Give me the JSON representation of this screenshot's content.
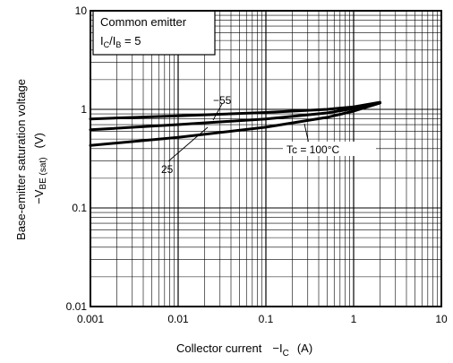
{
  "chart_data": {
    "type": "line",
    "x_scale": "log",
    "y_scale": "log",
    "xlim": [
      0.001,
      10
    ],
    "ylim": [
      0.01,
      10
    ],
    "grid": true,
    "xlabel": "Collector current",
    "xlabel_symbol": "−I",
    "xlabel_sub": "C",
    "xlabel_unit": "(A)",
    "ylabel_line1": "Base-emitter saturation voltage",
    "ylabel_line2": "−V",
    "ylabel_line2_sub": "BE (sat)",
    "ylabel_unit": "(V)",
    "x_ticks": [
      "0.001",
      "0.01",
      "0.1",
      "1",
      "10"
    ],
    "y_ticks": [
      "0.01",
      "0.1",
      "1",
      "10"
    ],
    "annotation_box": {
      "line1": "Common emitter",
      "line2_pre": "I",
      "line2_sub1": "C",
      "line2_mid": "/I",
      "line2_sub2": "B",
      "line2_post": " = 5"
    },
    "series": [
      {
        "name": "−55",
        "x": [
          0.001,
          0.01,
          0.1,
          0.5,
          1,
          2
        ],
        "y": [
          0.8,
          0.86,
          0.93,
          1.0,
          1.06,
          1.18
        ]
      },
      {
        "name": "25",
        "x": [
          0.001,
          0.01,
          0.1,
          0.5,
          1,
          2
        ],
        "y": [
          0.62,
          0.7,
          0.8,
          0.92,
          1.02,
          1.17
        ]
      },
      {
        "name": "Tc = 100°C",
        "x": [
          0.001,
          0.01,
          0.1,
          0.5,
          1,
          2
        ],
        "y": [
          0.43,
          0.52,
          0.66,
          0.83,
          0.96,
          1.16
        ]
      }
    ],
    "series_colors": [
      "#000000",
      "#000000",
      "#000000"
    ]
  }
}
